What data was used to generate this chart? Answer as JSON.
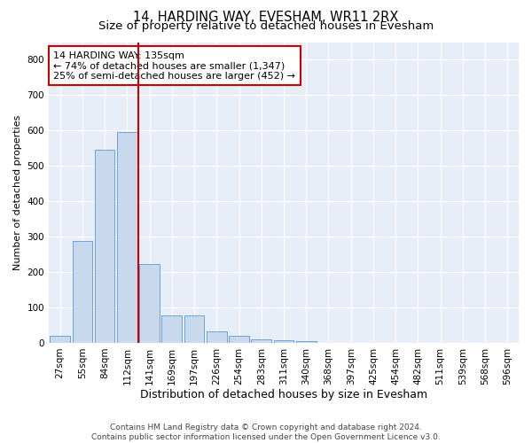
{
  "title": "14, HARDING WAY, EVESHAM, WR11 2RX",
  "subtitle": "Size of property relative to detached houses in Evesham",
  "xlabel": "Distribution of detached houses by size in Evesham",
  "ylabel": "Number of detached properties",
  "categories": [
    "27sqm",
    "55sqm",
    "84sqm",
    "112sqm",
    "141sqm",
    "169sqm",
    "197sqm",
    "226sqm",
    "254sqm",
    "283sqm",
    "311sqm",
    "340sqm",
    "368sqm",
    "397sqm",
    "425sqm",
    "454sqm",
    "482sqm",
    "511sqm",
    "539sqm",
    "568sqm",
    "596sqm"
  ],
  "values": [
    20,
    287,
    547,
    597,
    222,
    78,
    78,
    32,
    20,
    10,
    8,
    5,
    0,
    0,
    0,
    0,
    0,
    0,
    0,
    0,
    0
  ],
  "bar_color": "#c8d9ed",
  "bar_edge_color": "#5b9bd5",
  "property_line_color": "#cc0000",
  "annotation_text": "14 HARDING WAY: 135sqm\n← 74% of detached houses are smaller (1,347)\n25% of semi-detached houses are larger (452) →",
  "annotation_box_color": "#ffffff",
  "annotation_box_edge": "#cc0000",
  "ylim": [
    0,
    850
  ],
  "yticks": [
    0,
    100,
    200,
    300,
    400,
    500,
    600,
    700,
    800
  ],
  "background_color": "#e8eef8",
  "footer": "Contains HM Land Registry data © Crown copyright and database right 2024.\nContains public sector information licensed under the Open Government Licence v3.0.",
  "title_fontsize": 10.5,
  "subtitle_fontsize": 9.5,
  "xlabel_fontsize": 9,
  "ylabel_fontsize": 8,
  "tick_fontsize": 7.5,
  "annotation_fontsize": 8,
  "footer_fontsize": 6.5
}
